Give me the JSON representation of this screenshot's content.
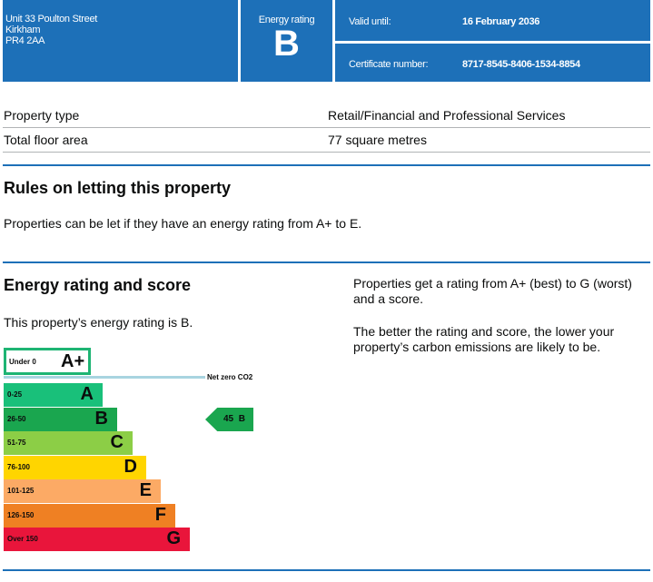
{
  "header": {
    "address": [
      "Unit 33 Poulton Street",
      "Kirkham",
      "PR4 2AA"
    ],
    "rating_label": "Energy rating",
    "rating": "B",
    "valid_label": "Valid until:",
    "valid_value": "16 February 2036",
    "cert_label": "Certificate number:",
    "cert_value": "8717-8545-8406-1534-8854"
  },
  "summary": [
    {
      "label": "Property type",
      "value": "Retail/Financial and Professional Services"
    },
    {
      "label": "Total floor area",
      "value": "77 square metres"
    }
  ],
  "rules": {
    "title": "Rules on letting this property",
    "text": "Properties can be let if they have an energy rating from A+ to E."
  },
  "energy": {
    "title": "Energy rating and score",
    "text": "This property’s energy rating is B.",
    "side1": "Properties get a rating from A+ (best) to G (worst) and a score.",
    "side2": "The better the rating and score, the lower your property’s carbon emissions are likely to be.",
    "aplus": {
      "range": "Under 0",
      "letter": "A+",
      "color": "#1eb473"
    },
    "net_zero": "Net zero CO2",
    "bands": [
      {
        "range": "0-25",
        "letter": "A",
        "color": "#19c07a"
      },
      {
        "range": "26-50",
        "letter": "B",
        "color": "#1aa64f"
      },
      {
        "range": "51-75",
        "letter": "C",
        "color": "#8cce46"
      },
      {
        "range": "76-100",
        "letter": "D",
        "color": "#ffd500"
      },
      {
        "range": "101-125",
        "letter": "E",
        "color": "#fcaa65"
      },
      {
        "range": "126-150",
        "letter": "F",
        "color": "#ef8023"
      },
      {
        "range": "Over 150",
        "letter": "G",
        "color": "#e9153b"
      }
    ],
    "current": {
      "score": "45",
      "letter": "B",
      "color": "#1aa64f"
    }
  }
}
